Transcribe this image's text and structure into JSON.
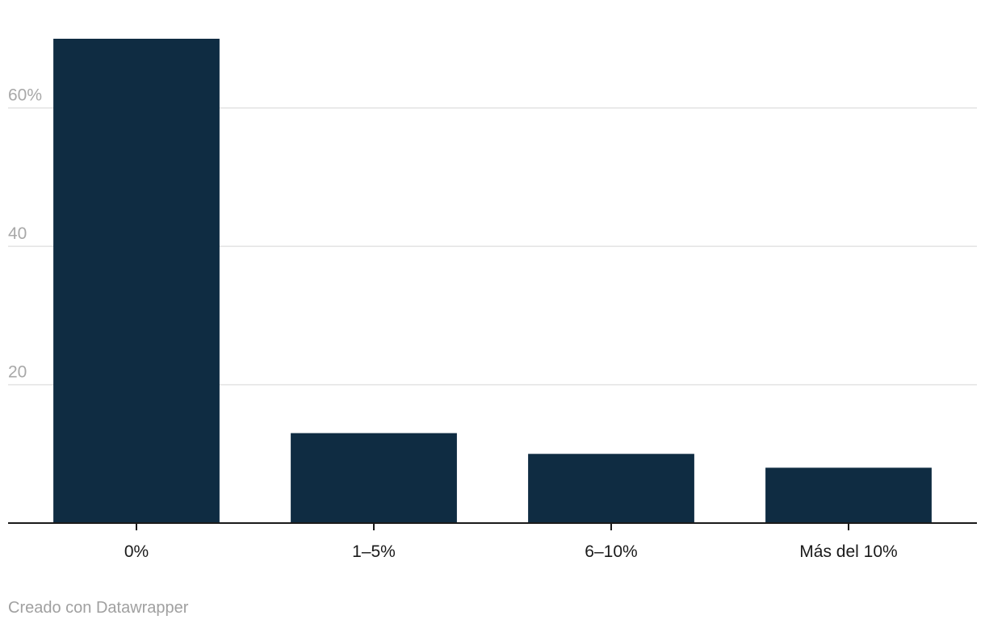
{
  "chart_data": {
    "type": "bar",
    "categories": [
      "0%",
      "1–5%",
      "6–10%",
      "Más del 10%"
    ],
    "values": [
      70,
      13,
      10,
      8
    ],
    "ylim": [
      0,
      70
    ],
    "yticks": [
      20,
      40,
      60
    ],
    "ytick_labels": [
      "20",
      "40",
      "60%"
    ],
    "bar_color": "#0f2c42",
    "grid": true,
    "title": "",
    "xlabel": "",
    "ylabel": ""
  },
  "footer": {
    "credit": "Creado con Datawrapper"
  }
}
